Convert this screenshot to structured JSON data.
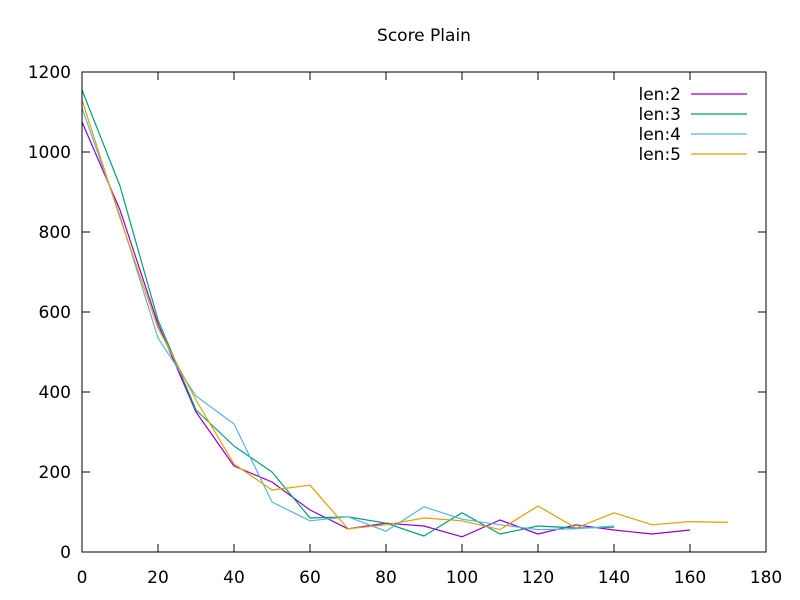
{
  "chart_data": {
    "type": "line",
    "title": "Score Plain",
    "xlabel": "",
    "ylabel": "",
    "xlim": [
      0,
      180
    ],
    "ylim": [
      0,
      1200
    ],
    "xticks": [
      0,
      20,
      40,
      60,
      80,
      100,
      120,
      140,
      160,
      180
    ],
    "yticks": [
      0,
      200,
      400,
      600,
      800,
      1000,
      1200
    ],
    "grid": false,
    "legend_position": "top-right",
    "series": [
      {
        "name": "len:2",
        "color": "#9400d3",
        "x": [
          0,
          10,
          20,
          30,
          40,
          50,
          60,
          70,
          80,
          90,
          100,
          110,
          120,
          130,
          140,
          150,
          160
        ],
        "y": [
          1075,
          855,
          570,
          350,
          215,
          175,
          105,
          58,
          72,
          65,
          38,
          80,
          45,
          68,
          55,
          45,
          55
        ]
      },
      {
        "name": "len:3",
        "color": "#009e73",
        "x": [
          0,
          10,
          20,
          30,
          40,
          50,
          60,
          70,
          80,
          90,
          100,
          110,
          120,
          130,
          140
        ],
        "y": [
          1155,
          915,
          580,
          355,
          265,
          200,
          85,
          88,
          72,
          40,
          98,
          45,
          65,
          60,
          62
        ]
      },
      {
        "name": "len:4",
        "color": "#56b4e9",
        "x": [
          0,
          10,
          20,
          30,
          40,
          50,
          60,
          70,
          80,
          90,
          100,
          110,
          120,
          130,
          140
        ],
        "y": [
          1110,
          840,
          535,
          390,
          320,
          125,
          78,
          88,
          52,
          113,
          82,
          68,
          56,
          58,
          65
        ]
      },
      {
        "name": "len:5",
        "color": "#e69f00",
        "x": [
          0,
          10,
          20,
          30,
          40,
          50,
          60,
          70,
          80,
          90,
          100,
          110,
          120,
          130,
          140,
          150,
          160,
          170
        ],
        "y": [
          1130,
          835,
          560,
          380,
          220,
          155,
          167,
          58,
          68,
          85,
          78,
          56,
          115,
          60,
          98,
          68,
          76,
          74
        ]
      }
    ]
  }
}
